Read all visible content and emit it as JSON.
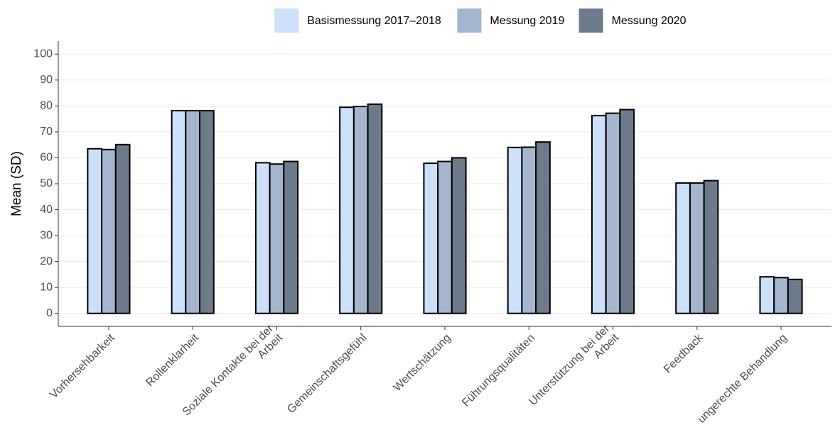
{
  "chart_data": {
    "type": "bar",
    "ylabel": "Mean (SD)",
    "categories": [
      "Vorhersehbarkeit",
      "Rollenklarheit",
      "Soziale Kontakte bei der\nArbeit",
      "Gemeinschaftsgefühl",
      "Wertschätzung",
      "Führungsqualitäten",
      "Unterstützung bei der\nArbeit",
      "Feedback",
      "ungerechte Behandlung"
    ],
    "series": [
      {
        "name": "Basismessung 2017–2018",
        "color": "#cce0fa",
        "values": [
          63.5,
          78.2,
          58.1,
          79.5,
          57.9,
          64.0,
          76.3,
          50.3,
          14.1
        ]
      },
      {
        "name": "Messung 2019",
        "color": "#a3b5cf",
        "values": [
          63.2,
          78.2,
          57.6,
          79.8,
          58.6,
          64.1,
          77.2,
          50.3,
          13.8
        ]
      },
      {
        "name": "Messung 2020",
        "color": "#6d7a8b",
        "values": [
          65.1,
          78.2,
          58.6,
          80.7,
          60.0,
          66.1,
          78.6,
          51.2,
          13.1
        ]
      }
    ],
    "ylim": [
      -5,
      105
    ],
    "yticks": [
      0,
      10,
      20,
      30,
      40,
      50,
      60,
      70,
      80,
      90,
      100
    ],
    "grid": true,
    "legend": "top"
  }
}
